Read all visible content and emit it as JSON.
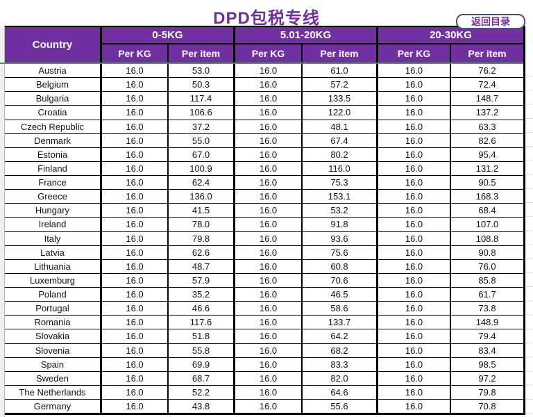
{
  "page": {
    "title": "DPD包税专线",
    "back_button_label": "返回目录"
  },
  "colors": {
    "header_purple": "#7030A0",
    "title_purple": "#7030A0",
    "divider_green": "#46A049",
    "button_border_navy": "#44546A",
    "grid_black": "#000000"
  },
  "table": {
    "country_header": "Country",
    "groups": [
      "0-5KG",
      "5.01-20KG",
      "20-30KG"
    ],
    "sub_headers": [
      "Per KG",
      "Per item"
    ],
    "rows": [
      {
        "country": "Austria",
        "values": [
          "16.0",
          "53.0",
          "16.0",
          "61.0",
          "16.0",
          "76.2"
        ]
      },
      {
        "country": "Belgium",
        "values": [
          "16.0",
          "50.3",
          "16.0",
          "57.2",
          "16.0",
          "72.4"
        ]
      },
      {
        "country": "Bulgaria",
        "values": [
          "16.0",
          "117.4",
          "16.0",
          "133.5",
          "16.0",
          "148.7"
        ]
      },
      {
        "country": "Croatia",
        "values": [
          "16.0",
          "106.6",
          "16.0",
          "122.0",
          "16.0",
          "137.2"
        ]
      },
      {
        "country": "Czech Republic",
        "values": [
          "16.0",
          "37.2",
          "16.0",
          "48.1",
          "16.0",
          "63.3"
        ]
      },
      {
        "country": "Denmark",
        "values": [
          "16.0",
          "55.0",
          "16.0",
          "67.4",
          "16.0",
          "82.6"
        ]
      },
      {
        "country": "Estonia",
        "values": [
          "16.0",
          "67.0",
          "16.0",
          "80.2",
          "16.0",
          "95.4"
        ]
      },
      {
        "country": "Finland",
        "values": [
          "16.0",
          "100.9",
          "16.0",
          "116.0",
          "16.0",
          "131.2"
        ]
      },
      {
        "country": "France",
        "values": [
          "16.0",
          "62.4",
          "16.0",
          "75.3",
          "16.0",
          "90.5"
        ]
      },
      {
        "country": "Greece",
        "values": [
          "16.0",
          "136.0",
          "16.0",
          "153.1",
          "16.0",
          "168.3"
        ]
      },
      {
        "country": "Hungary",
        "values": [
          "16.0",
          "41.5",
          "16.0",
          "53.2",
          "16.0",
          "68.4"
        ]
      },
      {
        "country": "Ireland",
        "values": [
          "16.0",
          "78.0",
          "16.0",
          "91.8",
          "16.0",
          "107.0"
        ]
      },
      {
        "country": "Italy",
        "values": [
          "16.0",
          "79.8",
          "16.0",
          "93.6",
          "16.0",
          "108.8"
        ]
      },
      {
        "country": "Latvia",
        "values": [
          "16.0",
          "62.6",
          "16.0",
          "75.6",
          "16.0",
          "90.8"
        ]
      },
      {
        "country": "Lithuania",
        "values": [
          "16.0",
          "48.7",
          "16.0",
          "60.8",
          "16.0",
          "76.0"
        ]
      },
      {
        "country": "Luxemburg",
        "values": [
          "16.0",
          "57.9",
          "16.0",
          "70.6",
          "16.0",
          "85.8"
        ]
      },
      {
        "country": "Poland",
        "values": [
          "16.0",
          "35.2",
          "16.0",
          "46.5",
          "16.0",
          "61.7"
        ]
      },
      {
        "country": "Portugal",
        "values": [
          "16.0",
          "46.6",
          "16.0",
          "58.6",
          "16.0",
          "73.8"
        ]
      },
      {
        "country": "Romania",
        "values": [
          "16.0",
          "117.6",
          "16.0",
          "133.7",
          "16.0",
          "148.9"
        ]
      },
      {
        "country": "Slovakia",
        "values": [
          "16.0",
          "51.8",
          "16.0",
          "64.2",
          "16.0",
          "79.4"
        ]
      },
      {
        "country": "Slovenia",
        "values": [
          "16.0",
          "55.8",
          "16.0",
          "68.2",
          "16.0",
          "83.4"
        ]
      },
      {
        "country": "Spain",
        "values": [
          "16.0",
          "69.9",
          "16.0",
          "83.3",
          "16.0",
          "98.5"
        ]
      },
      {
        "country": "Sweden",
        "values": [
          "16.0",
          "68.7",
          "16.0",
          "82.0",
          "16.0",
          "97.2"
        ]
      },
      {
        "country": "The Netherlands",
        "values": [
          "16.0",
          "52.2",
          "16.0",
          "64.6",
          "16.0",
          "79.8"
        ]
      },
      {
        "country": "Germany",
        "values": [
          "16.0",
          "43.8",
          "16.0",
          "55.6",
          "16.0",
          "70.8"
        ]
      }
    ]
  }
}
